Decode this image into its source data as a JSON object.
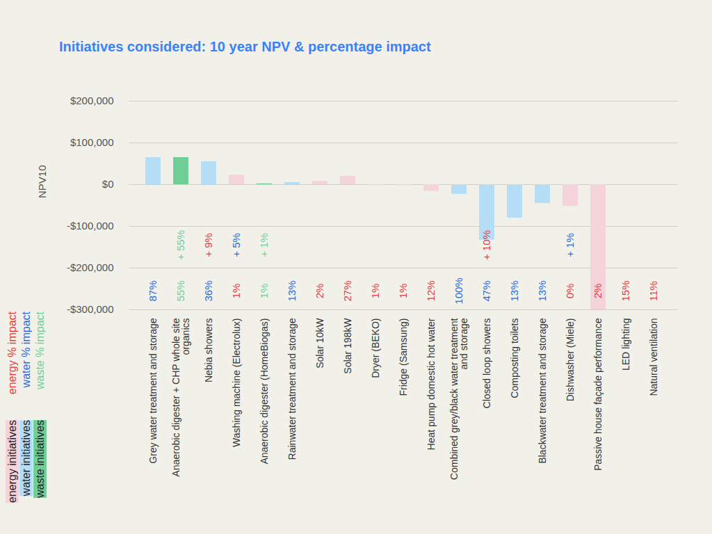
{
  "chart_data": {
    "type": "bar",
    "title": "Initiatives considered: 10 year NPV & percentage impact",
    "y_label": "NPV10",
    "categories": [
      "Grey water treatment and storage",
      "Anaerobic digester + CHP whole site organics",
      "Nebia showers",
      "Washing machine (Electrolux)",
      "Anaerobic digester (HomeBiogas)",
      "Rainwater treatment and storage",
      "Solar 10kW",
      "Solar 198kW",
      "Dryer (BEKO)",
      "Fridge (Samsung)",
      "Heat pump domestic hot water",
      "Combined grey/black water treatment and storage",
      "Closed loop showers",
      "Composting toilets",
      "Blackwater treatment and storage",
      "Dishwasher (Miele)",
      "Passive house façade performance",
      "LED lighting",
      "Natural ventilation"
    ],
    "values": [
      65000,
      65000,
      55000,
      23000,
      2000,
      5000,
      8000,
      20000,
      -1000,
      -1000,
      -16000,
      -23000,
      -133000,
      -80000,
      -45000,
      -52000,
      -300000,
      0,
      0
    ],
    "colors": [
      "#b5def6",
      "#6fcf97",
      "#b5def6",
      "#f5d3da",
      "#6fcf97",
      "#b5def6",
      "#f5d3da",
      "#f5d3da",
      "#f5d3da",
      "#f5d3da",
      "#f5d3da",
      "#b5def6",
      "#b5def6",
      "#b5def6",
      "#b5def6",
      "#f5d3da",
      "#f5d3da",
      "#f5d3da",
      "#f5d3da"
    ],
    "impact_labels": [
      {
        "value": 87,
        "label": "87%",
        "color": "#2e6bd6"
      },
      {
        "value": 55,
        "label": "55%",
        "color": "#6fcf97"
      },
      {
        "value": 36,
        "label": "36%",
        "color": "#2e6bd6"
      },
      {
        "value": 1,
        "label": "1%",
        "color": "#e0403c"
      },
      {
        "value": 1,
        "label": "1%",
        "color": "#6fcf97"
      },
      {
        "value": 13,
        "label": "13%",
        "color": "#2e6bd6"
      },
      {
        "value": 2,
        "label": "2%",
        "color": "#e0403c"
      },
      {
        "value": 27,
        "label": "27%",
        "color": "#e0403c"
      },
      {
        "value": 1,
        "label": "1%",
        "color": "#e0403c"
      },
      {
        "value": 1,
        "label": "1%",
        "color": "#e0403c"
      },
      {
        "value": 12,
        "label": "12%",
        "color": "#e0403c"
      },
      {
        "value": 100,
        "label": "100%",
        "color": "#2e6bd6"
      },
      {
        "value": 47,
        "label": "47%",
        "color": "#2e6bd6"
      },
      {
        "value": 13,
        "label": "13%",
        "color": "#2e6bd6"
      },
      {
        "value": 13,
        "label": "13%",
        "color": "#2e6bd6"
      },
      {
        "value": 0,
        "label": "0%",
        "color": "#e0403c"
      },
      {
        "value": 2,
        "label": "2%",
        "color": "#e0403c"
      },
      {
        "value": 15,
        "label": "15%",
        "color": "#e0403c"
      },
      {
        "value": 11,
        "label": "11%",
        "color": "#e0403c"
      }
    ],
    "extra_impact_labels": [
      null,
      {
        "value": 55,
        "label": "+ 55%",
        "color": "#6fcf97"
      },
      {
        "value": 9,
        "label": "+ 9%",
        "color": "#e0403c"
      },
      {
        "value": 5,
        "label": "+ 5%",
        "color": "#2e6bd6"
      },
      {
        "value": 1,
        "label": "+ 1%",
        "color": "#6fcf97"
      },
      null,
      null,
      null,
      null,
      null,
      null,
      null,
      {
        "value": 10,
        "label": "+ 10%",
        "color": "#e0403c"
      },
      null,
      null,
      {
        "value": 1,
        "label": "+ 1%",
        "color": "#2e6bd6"
      },
      null,
      null,
      null
    ],
    "impact_types": [
      {
        "name": "energy % impact",
        "color": "#e0403c"
      },
      {
        "name": "water % impact",
        "color": "#2e6bd6"
      },
      {
        "name": "waste % impact",
        "color": "#6fcf97"
      }
    ],
    "initiative_types": [
      {
        "name": "energy initiatives",
        "color": "#f5d3da"
      },
      {
        "name": "water initiatives",
        "color": "#b5def6"
      },
      {
        "name": "waste initiatives",
        "color": "#6fcf97"
      }
    ],
    "ylim": [
      -300000,
      200000
    ],
    "yticks": [
      {
        "value": 200000,
        "label": "$200,000"
      },
      {
        "value": 100000,
        "label": "$100,000"
      },
      {
        "value": 0,
        "label": "$0"
      },
      {
        "value": -100000,
        "label": "-$100,000"
      },
      {
        "value": -200000,
        "label": "-$200,000"
      },
      {
        "value": -300000,
        "label": "-$300,000"
      }
    ],
    "grid": true
  }
}
